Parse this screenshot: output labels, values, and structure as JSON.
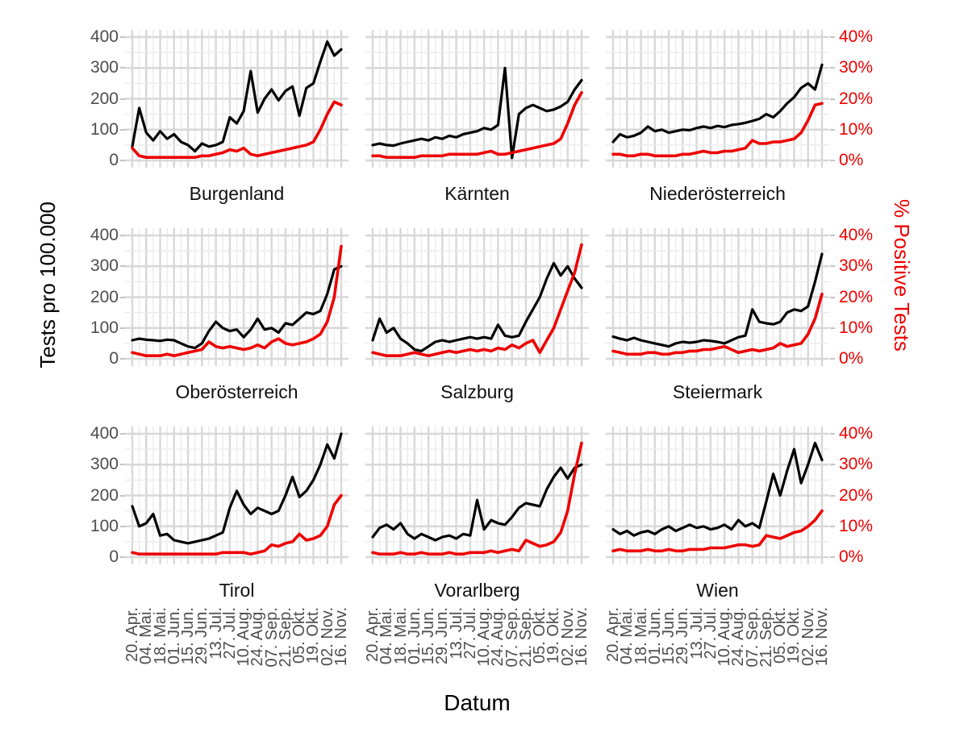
{
  "chart_data": {
    "type": "line",
    "layout": "facet-grid-3x3",
    "x": {
      "title": "Datum",
      "tick_labels": [
        "20. Apr.",
        "04. Mai.",
        "18. Mai.",
        "01. Jun.",
        "15. Jun.",
        "29. Jun.",
        "13. Jul.",
        "27. Jul.",
        "10. Aug.",
        "24. Aug.",
        "07. Sep.",
        "21. Sep.",
        "05. Okt.",
        "19. Okt.",
        "02. Nov.",
        "16. Nov."
      ],
      "range_days": [
        0,
        210
      ],
      "major_tick_interval_days": 14,
      "minor_grid_interval_days": 7,
      "sample_interval_days": 7
    },
    "left_axis": {
      "title": "Tests pro 100.000",
      "tick_labels": [
        "0",
        "100",
        "200",
        "300",
        "400"
      ],
      "tick_values": [
        0,
        100,
        200,
        300,
        400
      ],
      "range": [
        0,
        400
      ],
      "label_color": "#4D4D4D"
    },
    "right_axis": {
      "title": "% Positive Tests",
      "tick_labels": [
        "0%",
        "10%",
        "20%",
        "30%",
        "40%"
      ],
      "tick_values": [
        0,
        10,
        20,
        30,
        40
      ],
      "range": [
        0,
        40
      ],
      "label_color": "#EE0000"
    },
    "series_meta": [
      {
        "key": "tests",
        "name": "Tests pro 100.000",
        "color": "#000000",
        "axis": "left"
      },
      {
        "key": "positive",
        "name": "% Positive Tests",
        "color": "#EE0000",
        "axis": "right"
      }
    ],
    "grid": {
      "major_color": "#D8D8D8",
      "minor_color": "#EAEAEA"
    },
    "facets": [
      {
        "label": "Burgenland",
        "tests": [
          45,
          170,
          90,
          65,
          95,
          70,
          85,
          60,
          50,
          30,
          55,
          45,
          50,
          60,
          140,
          120,
          160,
          290,
          155,
          200,
          230,
          195,
          225,
          240,
          145,
          235,
          250,
          320,
          385,
          340,
          360
        ],
        "positive": [
          4,
          1.5,
          1,
          1,
          1,
          1,
          1,
          1,
          1,
          1,
          1.5,
          1.5,
          2,
          2.5,
          3.5,
          3,
          4,
          2,
          1.5,
          2,
          2.5,
          3,
          3.5,
          4,
          4.5,
          5,
          6,
          10,
          15,
          19,
          18
        ]
      },
      {
        "label": "Kärnten",
        "tests": [
          50,
          55,
          50,
          48,
          55,
          60,
          65,
          70,
          65,
          75,
          70,
          80,
          75,
          85,
          90,
          95,
          105,
          100,
          115,
          300,
          8,
          150,
          170,
          180,
          170,
          160,
          165,
          175,
          190,
          230,
          260
        ],
        "positive": [
          1.5,
          1.5,
          1,
          1,
          1,
          1,
          1,
          1.5,
          1.5,
          1.5,
          1.5,
          2,
          2,
          2,
          2,
          2,
          2.5,
          3,
          2,
          2,
          2.5,
          3,
          3.5,
          4,
          4.5,
          5,
          5.5,
          7,
          12,
          18,
          22
        ]
      },
      {
        "label": "Niederösterreich",
        "tests": [
          60,
          85,
          75,
          80,
          90,
          110,
          95,
          100,
          90,
          95,
          100,
          98,
          105,
          110,
          105,
          112,
          108,
          115,
          118,
          122,
          128,
          135,
          150,
          140,
          160,
          185,
          205,
          235,
          250,
          230,
          310
        ],
        "positive": [
          2,
          2,
          1.5,
          1.5,
          2,
          2,
          1.5,
          1.5,
          1.5,
          1.5,
          2,
          2,
          2.5,
          3,
          2.5,
          2.5,
          3,
          3,
          3.5,
          4,
          6.5,
          5.5,
          5.5,
          6,
          6,
          6.5,
          7,
          9,
          13,
          18,
          18.5
        ]
      },
      {
        "label": "Oberösterreich",
        "tests": [
          60,
          65,
          62,
          60,
          58,
          62,
          60,
          50,
          40,
          35,
          50,
          90,
          120,
          100,
          90,
          95,
          70,
          95,
          130,
          95,
          100,
          85,
          115,
          110,
          130,
          150,
          145,
          155,
          210,
          290,
          300
        ],
        "positive": [
          2,
          1.5,
          1,
          1,
          1,
          1.5,
          1,
          1.5,
          2,
          2.5,
          3,
          5.5,
          4,
          3.5,
          4,
          3.5,
          3,
          3.5,
          4.5,
          3.5,
          5.5,
          6.5,
          5,
          4.5,
          5,
          5.5,
          6.5,
          8,
          12,
          20,
          36.5
        ]
      },
      {
        "label": "Salzburg",
        "tests": [
          60,
          130,
          85,
          100,
          65,
          50,
          30,
          25,
          40,
          55,
          60,
          55,
          60,
          65,
          70,
          65,
          70,
          65,
          110,
          75,
          70,
          75,
          120,
          160,
          200,
          260,
          310,
          270,
          300,
          260,
          230
        ],
        "positive": [
          2,
          1.5,
          1,
          1,
          1,
          1.5,
          2,
          1.5,
          1,
          1.5,
          2,
          2.5,
          2,
          2.5,
          3,
          2.5,
          3,
          2.5,
          3.5,
          3,
          4.5,
          3.5,
          5,
          6,
          2,
          6,
          10,
          16,
          22,
          28,
          37
        ]
      },
      {
        "label": "Steiermark",
        "tests": [
          72,
          65,
          60,
          68,
          60,
          55,
          50,
          45,
          40,
          50,
          55,
          52,
          55,
          60,
          58,
          55,
          50,
          60,
          70,
          75,
          160,
          120,
          115,
          112,
          120,
          150,
          160,
          155,
          170,
          250,
          340
        ],
        "positive": [
          2.5,
          2,
          1.5,
          1.5,
          1.5,
          2,
          2,
          1.5,
          1.5,
          2,
          2,
          2.5,
          2.5,
          3,
          3,
          3.5,
          4,
          3,
          2,
          2.5,
          3,
          2.5,
          3,
          3.5,
          5,
          4,
          4.5,
          5,
          8,
          13,
          21
        ]
      },
      {
        "label": "Tirol",
        "tests": [
          165,
          100,
          110,
          140,
          70,
          75,
          55,
          50,
          45,
          50,
          55,
          60,
          70,
          80,
          160,
          215,
          170,
          140,
          160,
          150,
          140,
          150,
          200,
          260,
          195,
          215,
          250,
          300,
          365,
          320,
          400
        ],
        "positive": [
          1.5,
          1,
          1,
          1,
          1,
          1,
          1,
          1,
          1,
          1,
          1,
          1,
          1,
          1.5,
          1.5,
          1.5,
          1.5,
          1,
          1.5,
          2,
          4,
          3.5,
          4.5,
          5,
          7.5,
          5.5,
          6,
          7,
          10,
          17,
          20
        ]
      },
      {
        "label": "Vorarlberg",
        "tests": [
          65,
          95,
          105,
          90,
          110,
          75,
          60,
          75,
          65,
          55,
          65,
          70,
          60,
          75,
          70,
          185,
          90,
          120,
          110,
          105,
          130,
          160,
          175,
          170,
          165,
          220,
          260,
          290,
          255,
          290,
          300
        ],
        "positive": [
          1.5,
          1,
          1,
          1,
          1.5,
          1,
          1,
          1.5,
          1,
          1,
          1,
          1.5,
          1,
          1,
          1.5,
          1.5,
          1.5,
          2,
          1.5,
          2,
          2.5,
          2,
          5.5,
          4.5,
          3.5,
          4,
          5,
          8,
          15,
          27,
          37
        ]
      },
      {
        "label": "Wien",
        "tests": [
          90,
          75,
          85,
          70,
          80,
          85,
          75,
          90,
          100,
          85,
          95,
          105,
          95,
          100,
          90,
          95,
          105,
          90,
          120,
          100,
          110,
          95,
          180,
          270,
          200,
          280,
          350,
          240,
          300,
          370,
          315
        ],
        "positive": [
          2,
          2.5,
          2,
          2,
          2,
          2.5,
          2,
          2,
          2.5,
          2,
          2,
          2.5,
          2.5,
          2.5,
          3,
          3,
          3,
          3.5,
          4,
          4,
          3.5,
          4,
          7,
          6.5,
          6,
          7,
          8,
          8.5,
          10,
          12,
          15
        ]
      }
    ]
  }
}
